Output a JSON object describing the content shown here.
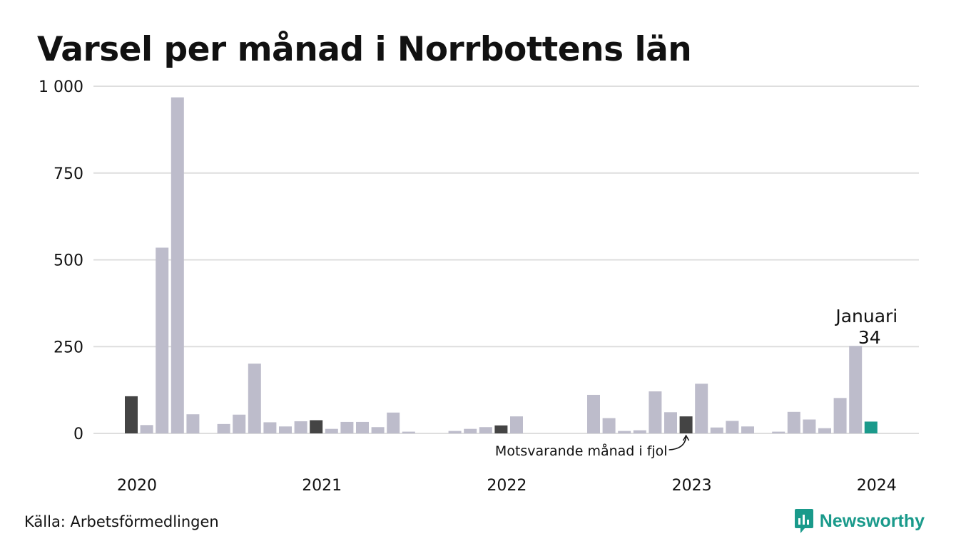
{
  "title": "Varsel per månad i Norrbottens län",
  "source": "Källa: Arbetsförmedlingen",
  "brand": {
    "name": "Newsworthy",
    "icon": "newsworthy-logo-icon"
  },
  "colors": {
    "bar": "#bdbccb",
    "same_month": "#444444",
    "current": "#1a9a8b",
    "grid": "#dedede",
    "text": "#111111"
  },
  "chart_data": {
    "type": "bar",
    "title": "Varsel per månad i Norrbottens län",
    "xlabel": "",
    "ylabel": "",
    "ylim": [
      0,
      1000
    ],
    "y_ticks": [
      0,
      250,
      500,
      750,
      1000
    ],
    "y_tick_labels": [
      "0",
      "250",
      "500",
      "750",
      "1 000"
    ],
    "x_tick_labels": [
      "2020",
      "2021",
      "2022",
      "2023",
      "2024"
    ],
    "grid": true,
    "categories": [
      "2020-01",
      "2020-02",
      "2020-03",
      "2020-04",
      "2020-05",
      "2020-06",
      "2020-07",
      "2020-08",
      "2020-09",
      "2020-10",
      "2020-11",
      "2020-12",
      "2021-01",
      "2021-02",
      "2021-03",
      "2021-04",
      "2021-05",
      "2021-06",
      "2021-07",
      "2021-08",
      "2021-09",
      "2021-10",
      "2021-11",
      "2021-12",
      "2022-01",
      "2022-02",
      "2022-03",
      "2022-04",
      "2022-05",
      "2022-06",
      "2022-07",
      "2022-08",
      "2022-09",
      "2022-10",
      "2022-11",
      "2022-12",
      "2023-01",
      "2023-02",
      "2023-03",
      "2023-04",
      "2023-05",
      "2023-06",
      "2023-07",
      "2023-08",
      "2023-09",
      "2023-10",
      "2023-11",
      "2023-12",
      "2024-01"
    ],
    "values": [
      107,
      24,
      535,
      968,
      55,
      0,
      27,
      54,
      201,
      32,
      20,
      35,
      38,
      13,
      33,
      33,
      18,
      60,
      5,
      0,
      0,
      7,
      13,
      18,
      23,
      49,
      0,
      0,
      0,
      0,
      111,
      44,
      7,
      9,
      121,
      61,
      49,
      143,
      17,
      36,
      20,
      0,
      5,
      62,
      40,
      15,
      102,
      252,
      34
    ],
    "same_month_indices": [
      0,
      12,
      24,
      36
    ],
    "current_index": 48,
    "annotations": {
      "current_month": "Januari",
      "current_value": "34",
      "last_year": "Motsvarande månad i fjol"
    }
  }
}
